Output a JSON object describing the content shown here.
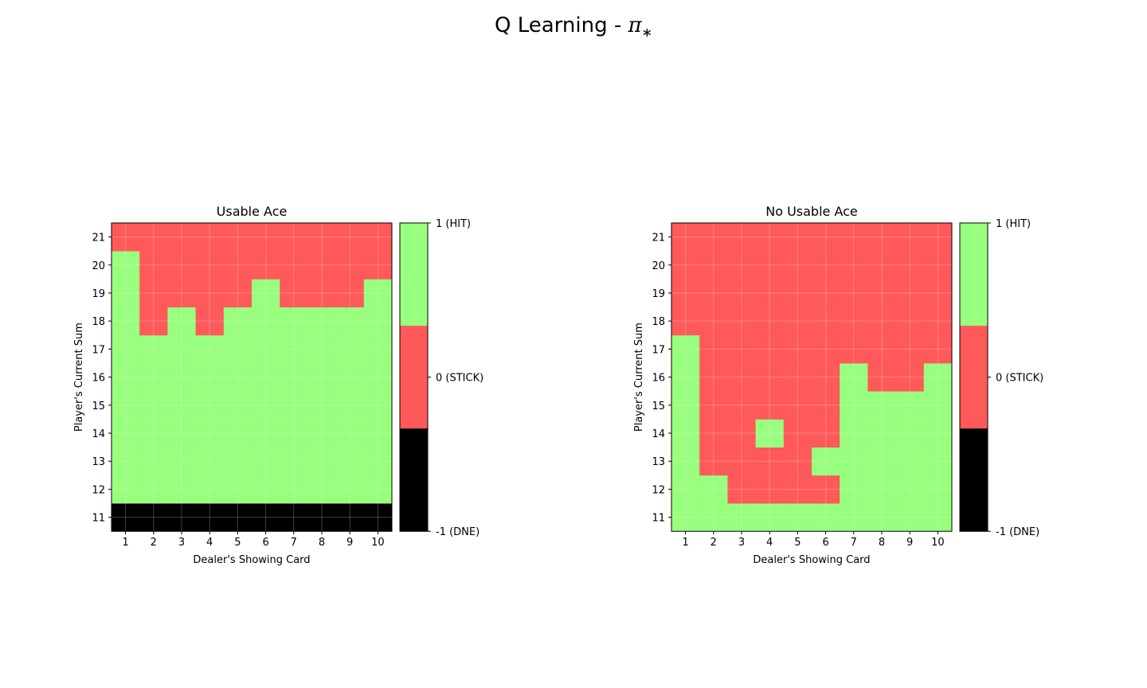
{
  "figure": {
    "title_main": "Q Learning - ",
    "title_symbol": "π",
    "title_subscript": "∗"
  },
  "colors": {
    "hit": "#99ff7f",
    "stick": "#ff5959",
    "dne": "#000000"
  },
  "chart_data": [
    {
      "type": "heatmap",
      "title": "Usable Ace",
      "xlabel": "Dealer's Showing Card",
      "ylabel": "Player's Current Sum",
      "x": [
        1,
        2,
        3,
        4,
        5,
        6,
        7,
        8,
        9,
        10
      ],
      "y": [
        11,
        12,
        13,
        14,
        15,
        16,
        17,
        18,
        19,
        20,
        21
      ],
      "grid": true,
      "values": [
        [
          -1,
          -1,
          -1,
          -1,
          -1,
          -1,
          -1,
          -1,
          -1,
          -1
        ],
        [
          1,
          1,
          1,
          1,
          1,
          1,
          1,
          1,
          1,
          1
        ],
        [
          1,
          1,
          1,
          1,
          1,
          1,
          1,
          1,
          1,
          1
        ],
        [
          1,
          1,
          1,
          1,
          1,
          1,
          1,
          1,
          1,
          1
        ],
        [
          1,
          1,
          1,
          1,
          1,
          1,
          1,
          1,
          1,
          1
        ],
        [
          1,
          1,
          1,
          1,
          1,
          1,
          1,
          1,
          1,
          1
        ],
        [
          1,
          1,
          1,
          1,
          1,
          1,
          1,
          1,
          1,
          1
        ],
        [
          1,
          0,
          1,
          0,
          1,
          1,
          1,
          1,
          1,
          1
        ],
        [
          1,
          0,
          0,
          0,
          0,
          1,
          0,
          0,
          0,
          1
        ],
        [
          1,
          0,
          0,
          0,
          0,
          0,
          0,
          0,
          0,
          0
        ],
        [
          0,
          0,
          0,
          0,
          0,
          0,
          0,
          0,
          0,
          0
        ]
      ],
      "colorbar": {
        "ticks": [
          {
            "value": 1,
            "label": "1 (HIT)"
          },
          {
            "value": 0,
            "label": "0 (STICK)"
          },
          {
            "value": -1,
            "label": "-1 (DNE)"
          }
        ]
      }
    },
    {
      "type": "heatmap",
      "title": "No Usable Ace",
      "xlabel": "Dealer's Showing Card",
      "ylabel": "Player's Current Sum",
      "x": [
        1,
        2,
        3,
        4,
        5,
        6,
        7,
        8,
        9,
        10
      ],
      "y": [
        11,
        12,
        13,
        14,
        15,
        16,
        17,
        18,
        19,
        20,
        21
      ],
      "grid": true,
      "values": [
        [
          1,
          1,
          1,
          1,
          1,
          1,
          1,
          1,
          1,
          1
        ],
        [
          1,
          1,
          0,
          0,
          0,
          0,
          1,
          1,
          1,
          1
        ],
        [
          1,
          0,
          0,
          0,
          0,
          1,
          1,
          1,
          1,
          1
        ],
        [
          1,
          0,
          0,
          1,
          0,
          0,
          1,
          1,
          1,
          1
        ],
        [
          1,
          0,
          0,
          0,
          0,
          0,
          1,
          1,
          1,
          1
        ],
        [
          1,
          0,
          0,
          0,
          0,
          0,
          1,
          0,
          0,
          1
        ],
        [
          1,
          0,
          0,
          0,
          0,
          0,
          0,
          0,
          0,
          0
        ],
        [
          0,
          0,
          0,
          0,
          0,
          0,
          0,
          0,
          0,
          0
        ],
        [
          0,
          0,
          0,
          0,
          0,
          0,
          0,
          0,
          0,
          0
        ],
        [
          0,
          0,
          0,
          0,
          0,
          0,
          0,
          0,
          0,
          0
        ],
        [
          0,
          0,
          0,
          0,
          0,
          0,
          0,
          0,
          0,
          0
        ]
      ],
      "colorbar": {
        "ticks": [
          {
            "value": 1,
            "label": "1 (HIT)"
          },
          {
            "value": 0,
            "label": "0 (STICK)"
          },
          {
            "value": -1,
            "label": "-1 (DNE)"
          }
        ]
      }
    }
  ]
}
